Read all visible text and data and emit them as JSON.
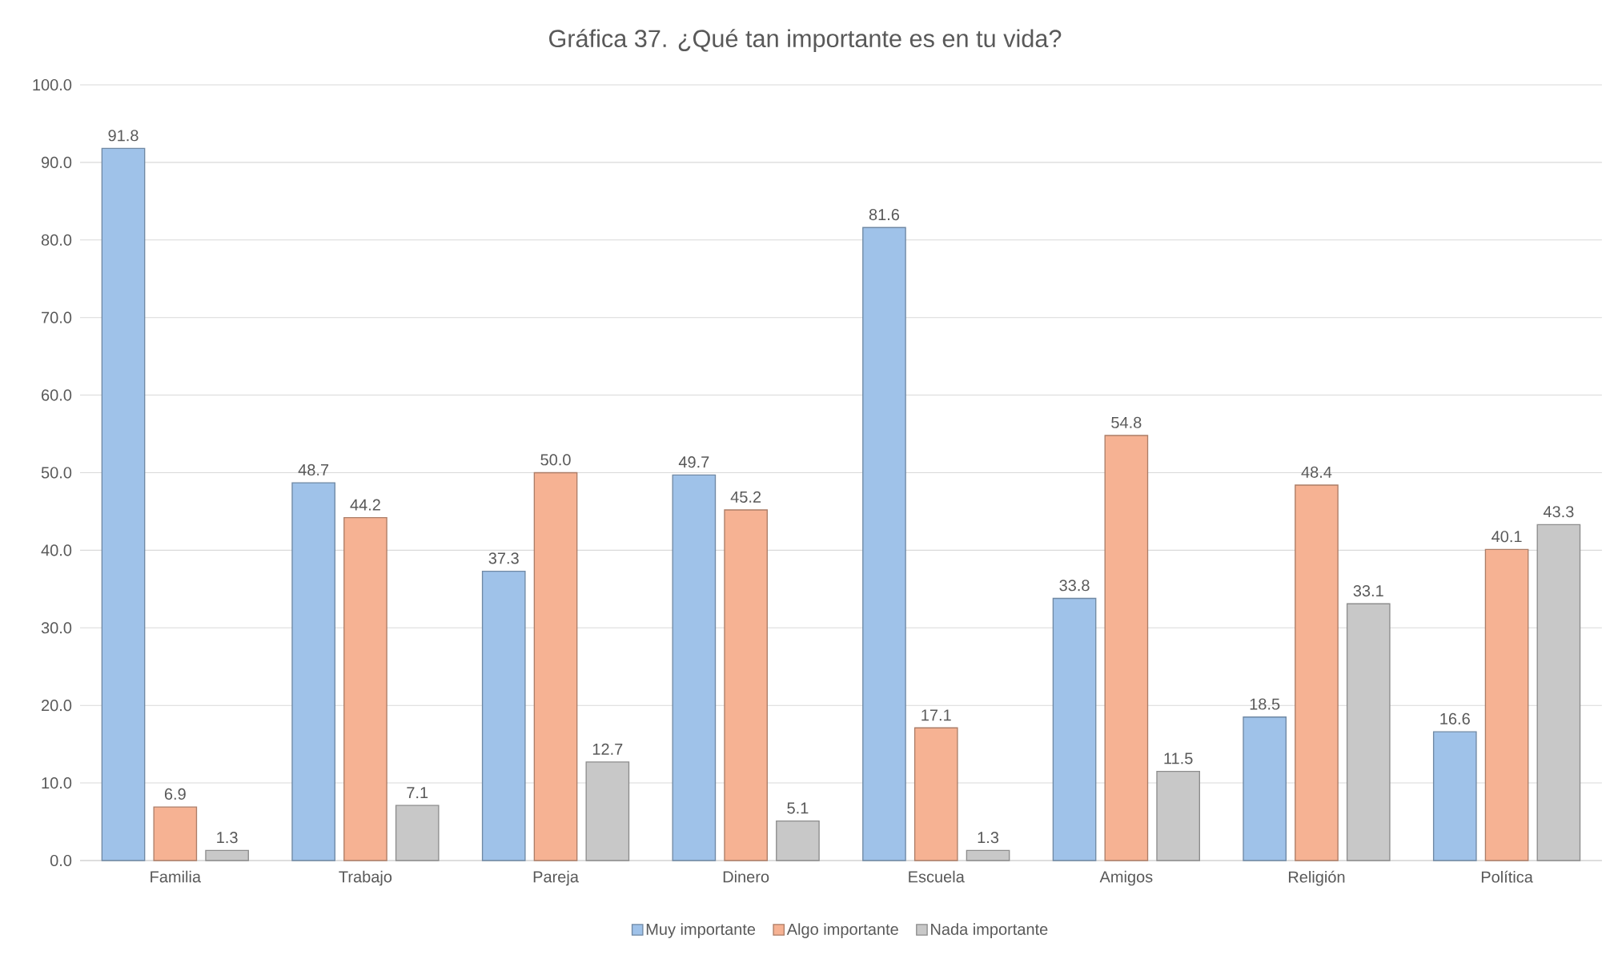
{
  "chart_data": {
    "type": "bar",
    "title": "Gráfica 37. ¿Qué tan importante es en tu vida?",
    "categories": [
      "Familia",
      "Trabajo",
      "Pareja",
      "Dinero",
      "Escuela",
      "Amigos",
      "Religión",
      "Política"
    ],
    "series": [
      {
        "name": "Muy importante",
        "color": "#9fc2e9",
        "values": [
          91.8,
          48.7,
          37.3,
          49.7,
          81.6,
          33.8,
          18.5,
          16.6
        ],
        "value_labels": [
          "91.8",
          "48.7",
          "37.3",
          "49.7",
          "81.6",
          "33.8",
          "18.5",
          "16.6"
        ]
      },
      {
        "name": "Algo importante",
        "color": "#f6b293",
        "values": [
          6.9,
          44.2,
          50.0,
          45.2,
          17.1,
          54.8,
          48.4,
          40.1
        ],
        "value_labels": [
          "6.9",
          "44.2",
          "50.0",
          "45.2",
          "17.1",
          "54.8",
          "48.4",
          "40.1"
        ]
      },
      {
        "name": "Nada importante",
        "color": "#c8c8c8",
        "values": [
          1.3,
          7.1,
          12.7,
          5.1,
          1.3,
          11.5,
          33.1,
          43.3
        ],
        "value_labels": [
          "1.3",
          "7.1",
          "12.7",
          "5.1",
          "1.3",
          "11.5",
          "33.1",
          "43.3"
        ]
      }
    ],
    "ylim": [
      0,
      100
    ],
    "yticks": [
      {
        "value": 0,
        "label": "0.0"
      },
      {
        "value": 10,
        "label": "10.0"
      },
      {
        "value": 20,
        "label": "20.0"
      },
      {
        "value": 30,
        "label": "30.0"
      },
      {
        "value": 40,
        "label": "40.0"
      },
      {
        "value": 50,
        "label": "50.0"
      },
      {
        "value": 60,
        "label": "60.0"
      },
      {
        "value": 70,
        "label": "70.0"
      },
      {
        "value": 80,
        "label": "80.0"
      },
      {
        "value": 90,
        "label": "90.0"
      },
      {
        "value": 100,
        "label": "100.0"
      }
    ],
    "grid": "y",
    "legend": "bottom"
  }
}
